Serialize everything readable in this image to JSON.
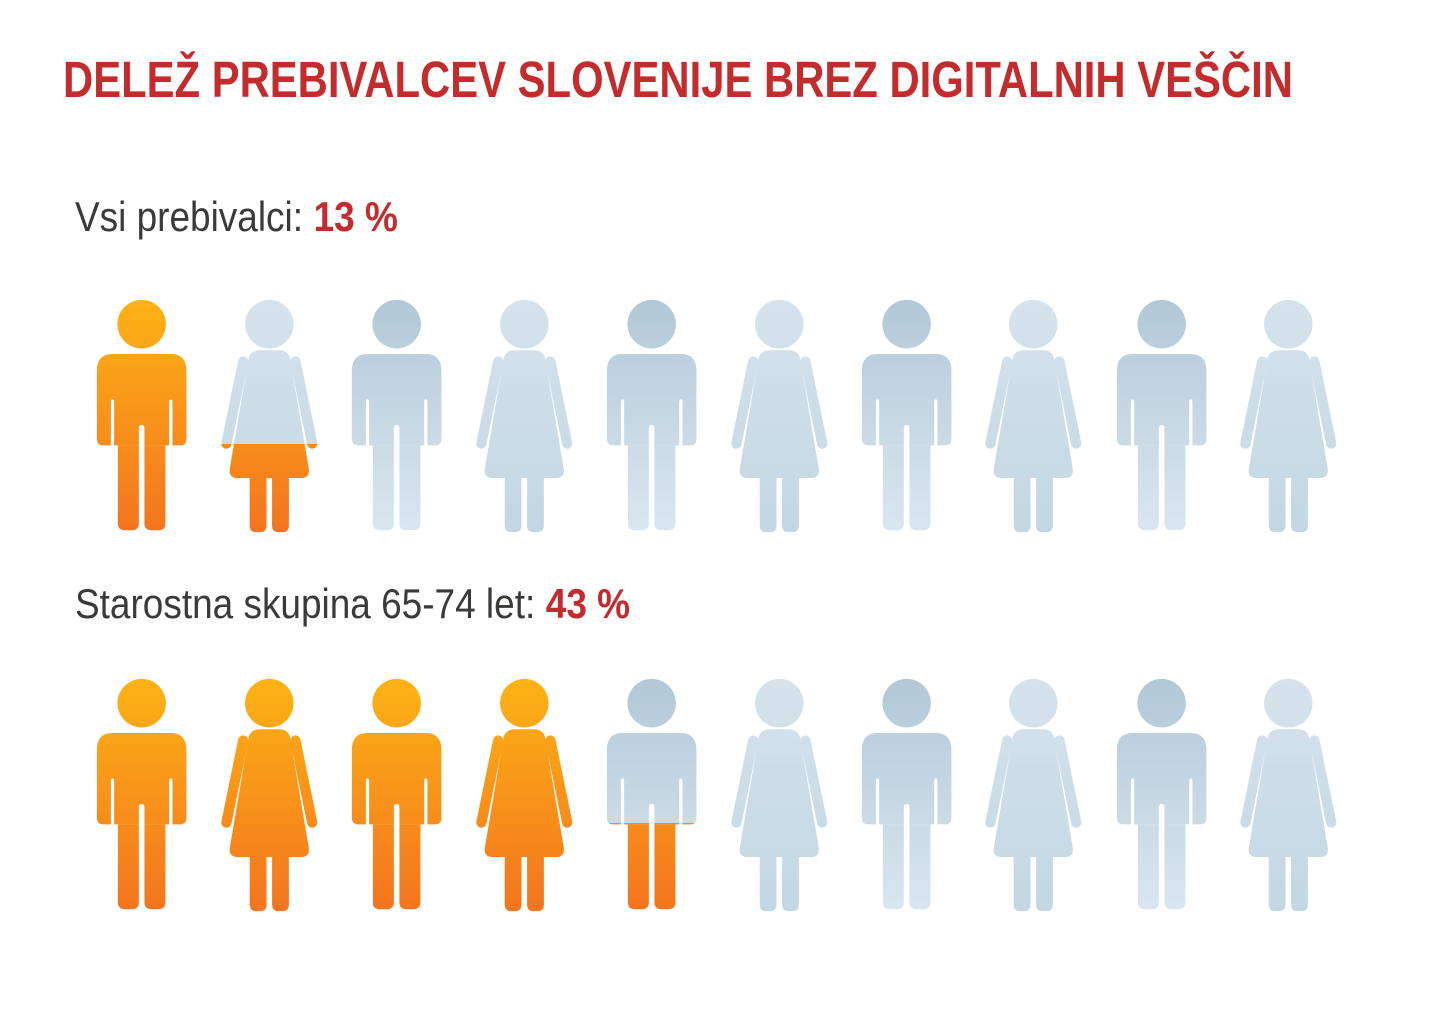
{
  "title": "DELEŽ PREBIVALCEV SLOVENIJE BREZ DIGITALNIH VEŠČIN",
  "chart_data": {
    "type": "pictogram",
    "title": "DELEŽ PREBIVALCEV SLOVENIJE BREZ DIGITALNIH VEŠČIN",
    "unit": "percent",
    "icons_per_row": 10,
    "icon_value_percent": 10,
    "icon_pattern": [
      "male",
      "female"
    ],
    "icon_names": [
      "person-male-icon",
      "person-female-icon"
    ],
    "series": [
      {
        "label": "Vsi prebivalci:",
        "value": 13,
        "value_label": "13 %",
        "filled_icons": 1,
        "partial_icon_fill": 0.38
      },
      {
        "label": "Starostna skupina 65-74 let:",
        "value": 43,
        "value_label": "43 %",
        "filled_icons": 4,
        "partial_icon_fill": 0.38
      }
    ],
    "colors": {
      "accent_red": "#C42B2D",
      "text_dark": "#3A3A39",
      "highlight_top": "#FDB315",
      "highlight_bottom": "#F3741F",
      "muted_male_top": "#B2C8D7",
      "muted_male_bottom": "#DAE7F0",
      "muted_female_top": "#D6E3EC",
      "muted_female_bottom": "#C2D7E3"
    },
    "legend_position": "none",
    "grid": false
  }
}
